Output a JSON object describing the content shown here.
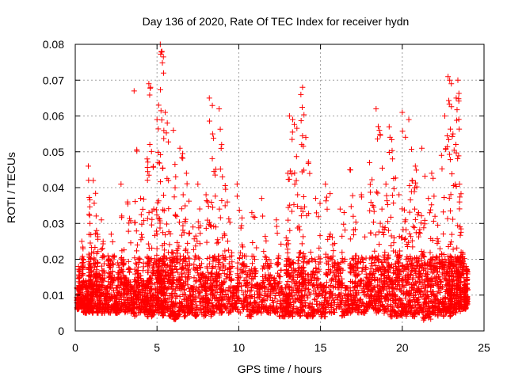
{
  "chart_data": {
    "type": "scatter",
    "title": "Day 136 of 2020, Rate Of TEC Index for receiver hydn",
    "xlabel": "GPS time / hours",
    "ylabel": "ROTI / TECUs",
    "xlim": [
      0,
      25
    ],
    "ylim": [
      0,
      0.08
    ],
    "x_ticks": [
      "0",
      "5",
      "10",
      "15",
      "20",
      "25"
    ],
    "y_ticks": [
      "0",
      "0.01",
      "0.02",
      "0.03",
      "0.04",
      "0.05",
      "0.06",
      "0.07",
      "0.08"
    ],
    "grid": true,
    "marker": "plus",
    "color": "#ff0000",
    "series": [
      {
        "x": [
          0.1,
          0.2,
          0.3,
          0.4,
          0.5,
          0.7,
          0.8,
          0.9,
          1.0,
          1.1,
          1.3,
          1.4,
          1.6,
          1.8,
          2.0,
          2.2,
          2.4,
          2.6,
          2.8,
          3.0,
          3.2,
          3.4,
          3.6,
          3.8,
          4.0,
          4.2,
          4.4,
          4.5,
          4.6,
          4.8,
          5.0,
          5.1,
          5.2,
          5.3,
          5.4,
          5.5,
          5.7,
          5.9,
          6.0,
          6.2,
          6.4,
          6.6,
          6.8,
          7.0,
          7.2,
          7.5,
          7.8,
          8.0,
          8.2,
          8.4,
          8.6,
          8.8,
          9.0,
          9.3,
          9.6,
          9.9,
          10.2,
          10.5,
          10.8,
          11.1,
          11.4,
          11.7,
          12.0,
          12.3,
          12.6,
          12.9,
          13.0,
          13.1,
          13.3,
          13.6,
          13.8,
          13.9,
          14.1,
          14.4,
          14.7,
          15.0,
          15.3,
          15.6,
          15.9,
          16.2,
          16.5,
          16.8,
          17.0,
          17.2,
          17.5,
          17.8,
          18.0,
          18.2,
          18.4,
          18.6,
          18.8,
          19.0,
          19.2,
          19.4,
          19.6,
          19.8,
          20.0,
          20.2,
          20.4,
          20.6,
          20.8,
          21.0,
          21.2,
          21.4,
          21.6,
          21.8,
          22.0,
          22.2,
          22.4,
          22.6,
          22.8,
          22.9,
          23.0,
          23.1,
          23.3,
          23.4,
          23.5,
          23.6,
          23.8,
          23.9
        ],
        "y": [
          0.012,
          0.018,
          0.009,
          0.025,
          0.014,
          0.011,
          0.046,
          0.03,
          0.013,
          0.042,
          0.028,
          0.016,
          0.031,
          0.012,
          0.021,
          0.027,
          0.01,
          0.019,
          0.041,
          0.015,
          0.036,
          0.011,
          0.067,
          0.024,
          0.037,
          0.013,
          0.048,
          0.069,
          0.068,
          0.034,
          0.059,
          0.063,
          0.08,
          0.078,
          0.072,
          0.061,
          0.042,
          0.022,
          0.056,
          0.032,
          0.051,
          0.038,
          0.044,
          0.011,
          0.029,
          0.041,
          0.016,
          0.038,
          0.065,
          0.055,
          0.029,
          0.062,
          0.043,
          0.036,
          0.012,
          0.041,
          0.024,
          0.018,
          0.033,
          0.013,
          0.037,
          0.02,
          0.015,
          0.031,
          0.011,
          0.026,
          0.044,
          0.06,
          0.059,
          0.038,
          0.066,
          0.068,
          0.054,
          0.022,
          0.037,
          0.013,
          0.041,
          0.027,
          0.019,
          0.034,
          0.012,
          0.045,
          0.032,
          0.021,
          0.038,
          0.015,
          0.047,
          0.035,
          0.062,
          0.056,
          0.029,
          0.041,
          0.057,
          0.048,
          0.022,
          0.038,
          0.061,
          0.031,
          0.059,
          0.042,
          0.046,
          0.033,
          0.051,
          0.019,
          0.037,
          0.044,
          0.032,
          0.025,
          0.049,
          0.06,
          0.071,
          0.07,
          0.069,
          0.055,
          0.065,
          0.07,
          0.041,
          0.022,
          0.013,
          0.018
        ],
        "band_min": [
          0.006,
          0.006,
          0.007,
          0.006,
          0.005,
          0.006,
          0.005,
          0.006,
          0.005,
          0.006,
          0.005,
          0.006,
          0.005,
          0.006,
          0.005,
          0.006,
          0.005,
          0.005,
          0.006,
          0.005,
          0.006,
          0.005,
          0.004,
          0.005,
          0.006,
          0.005,
          0.004,
          0.005,
          0.004,
          0.005,
          0.006,
          0.005,
          0.005,
          0.004,
          0.005,
          0.006,
          0.004,
          0.005,
          0.003,
          0.004,
          0.005,
          0.004,
          0.005,
          0.005,
          0.004,
          0.005,
          0.004,
          0.005,
          0.004,
          0.005,
          0.006,
          0.005,
          0.006,
          0.005,
          0.006,
          0.005,
          0.006,
          0.004,
          0.005,
          0.005,
          0.006,
          0.005,
          0.005,
          0.004,
          0.004,
          0.005,
          0.004,
          0.004,
          0.005,
          0.004,
          0.005,
          0.005,
          0.004,
          0.004,
          0.005,
          0.004,
          0.005,
          0.005,
          0.006,
          0.004,
          0.005,
          0.005,
          0.006,
          0.005,
          0.005,
          0.006,
          0.007,
          0.006,
          0.005,
          0.006,
          0.005,
          0.005,
          0.004,
          0.004,
          0.004,
          0.004,
          0.005,
          0.004,
          0.005,
          0.004,
          0.005,
          0.005,
          0.003,
          0.004,
          0.003,
          0.005,
          0.004,
          0.005,
          0.004,
          0.005,
          0.006,
          0.004,
          0.005,
          0.005,
          0.006,
          0.006,
          0.005,
          0.006,
          0.006,
          0.007
        ]
      }
    ]
  }
}
